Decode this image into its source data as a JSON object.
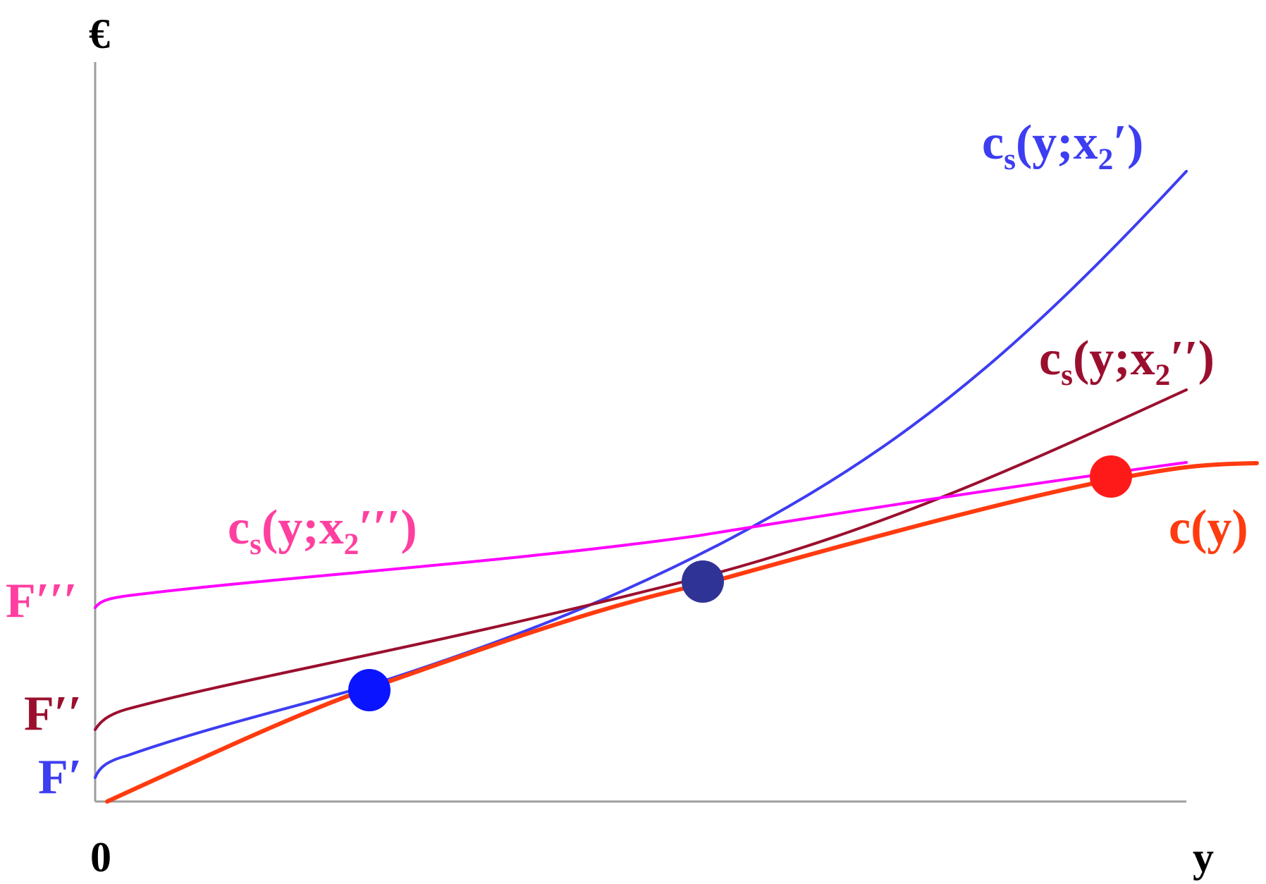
{
  "axes": {
    "y_axis_label": "€",
    "x_axis_label": "y",
    "origin_label": "0"
  },
  "curves": {
    "cs1": {
      "label_base": "c",
      "label_sub": "s",
      "label_args_open": "(y;x",
      "label_args_sub": "2",
      "label_args_close": "′)",
      "intercept_label": "F′",
      "color": "#3d3df2"
    },
    "cs2": {
      "label_base": "c",
      "label_sub": "s",
      "label_args_open": "(y;x",
      "label_args_sub": "2",
      "label_args_close": "′′)",
      "intercept_label": "F′′",
      "color": "#9b0f2e"
    },
    "cs3": {
      "label_base": "c",
      "label_sub": "s",
      "label_args_open": "(y;x",
      "label_args_sub": "2",
      "label_args_close": "′′′)",
      "intercept_label": "F′′′",
      "color": "#ff00ff",
      "label_color": "#ff3fa0"
    },
    "c": {
      "label": "c(y)",
      "color": "#ff3b0f"
    }
  },
  "points": [
    {
      "name": "tangent-point-1",
      "color": "#0a14ff"
    },
    {
      "name": "tangent-point-2",
      "color": "#303396"
    },
    {
      "name": "tangent-point-3",
      "color": "#ff1a1a"
    }
  ]
}
